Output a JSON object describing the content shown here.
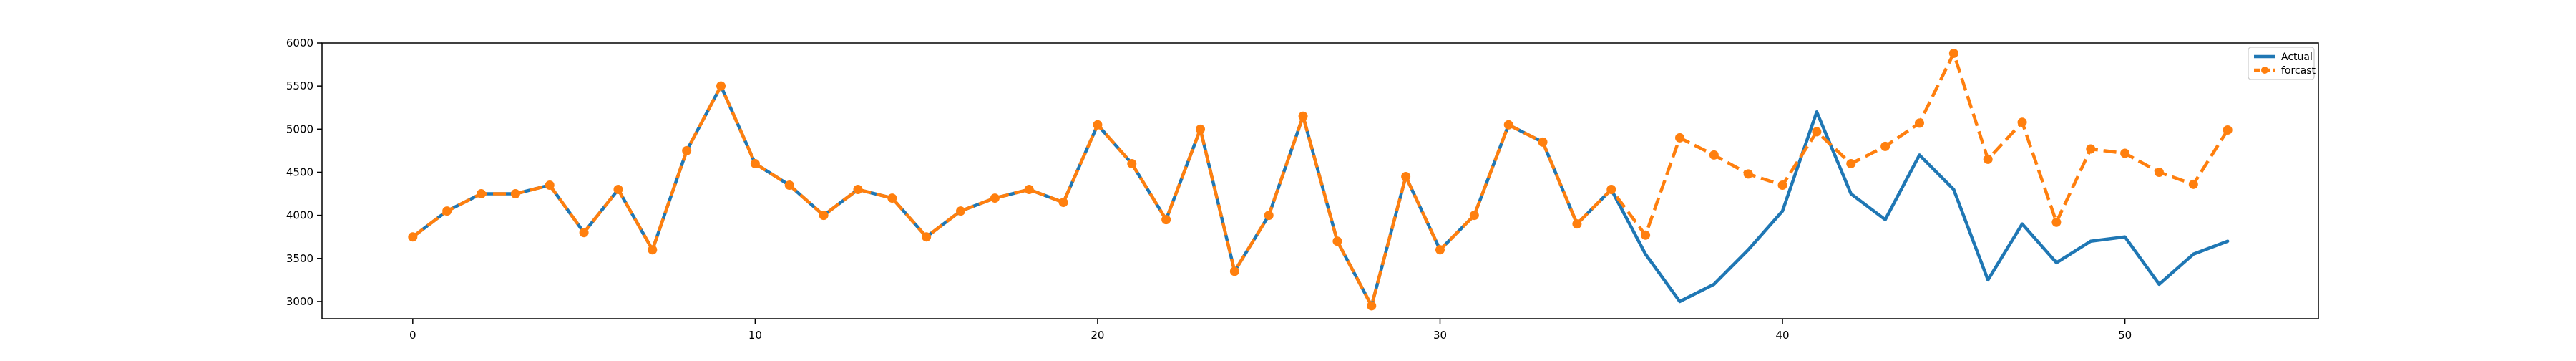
{
  "chart_data": {
    "type": "line",
    "title": "",
    "xlabel": "",
    "ylabel": "",
    "xlim": [
      -2.65,
      55.65
    ],
    "ylim": [
      2800,
      6000
    ],
    "x_ticks": [
      0,
      10,
      20,
      30,
      40,
      50
    ],
    "y_ticks": [
      3000,
      3500,
      4000,
      4500,
      5000,
      5500,
      6000
    ],
    "grid": false,
    "legend_position": "top-right",
    "series": [
      {
        "name": "Actual",
        "color": "#1f77b4",
        "style": "solid",
        "marker": "none",
        "x": [
          0,
          1,
          2,
          3,
          4,
          5,
          6,
          7,
          8,
          9,
          10,
          11,
          12,
          13,
          14,
          15,
          16,
          17,
          18,
          19,
          20,
          21,
          22,
          23,
          24,
          25,
          26,
          27,
          28,
          29,
          30,
          31,
          32,
          33,
          34,
          35,
          36,
          37,
          38,
          39,
          40,
          41,
          42,
          43,
          44,
          45,
          46,
          47,
          48,
          49,
          50,
          51,
          52,
          53
        ],
        "values": [
          3750,
          4050,
          4250,
          4250,
          4350,
          3800,
          4300,
          3600,
          4750,
          5500,
          4600,
          4350,
          4000,
          4300,
          4200,
          3750,
          4050,
          4200,
          4300,
          4150,
          5050,
          4600,
          3950,
          5000,
          3350,
          4000,
          5150,
          3700,
          2950,
          4450,
          3600,
          4000,
          5050,
          4850,
          3900,
          4300,
          3550,
          3000,
          3200,
          3600,
          4050,
          5200,
          4250,
          3950,
          4700,
          4300,
          3250,
          3900,
          3450,
          3700,
          3750,
          3200,
          3550,
          3700
        ]
      },
      {
        "name": "forcast",
        "color": "#ff7f0e",
        "style": "dashed",
        "marker": "circle",
        "x": [
          0,
          1,
          2,
          3,
          4,
          5,
          6,
          7,
          8,
          9,
          10,
          11,
          12,
          13,
          14,
          15,
          16,
          17,
          18,
          19,
          20,
          21,
          22,
          23,
          24,
          25,
          26,
          27,
          28,
          29,
          30,
          31,
          32,
          33,
          34,
          35,
          36,
          37,
          38,
          39,
          40,
          41,
          42,
          43,
          44,
          45,
          46,
          47,
          48,
          49,
          50,
          51,
          52,
          53
        ],
        "values": [
          3750,
          4050,
          4250,
          4250,
          4350,
          3800,
          4300,
          3600,
          4750,
          5500,
          4600,
          4350,
          4000,
          4300,
          4200,
          3750,
          4050,
          4200,
          4300,
          4150,
          5050,
          4600,
          3950,
          5000,
          3350,
          4000,
          5150,
          3700,
          2950,
          4450,
          3600,
          4000,
          5050,
          4850,
          3900,
          4300,
          3770,
          4900,
          4700,
          4480,
          4350,
          4970,
          4600,
          4800,
          5070,
          5880,
          4650,
          5080,
          3920,
          4770,
          4720,
          4500,
          4360,
          4990
        ]
      }
    ]
  }
}
